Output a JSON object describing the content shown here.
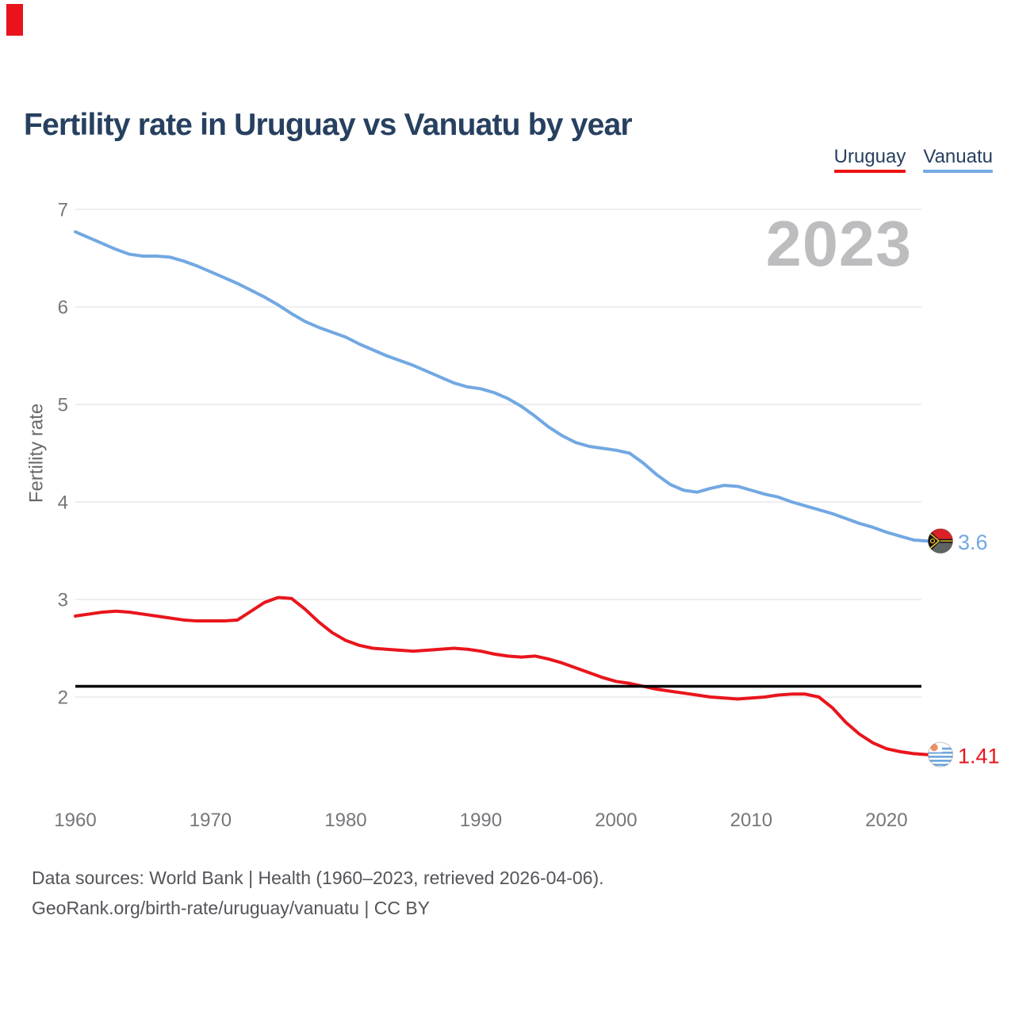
{
  "page": {
    "title": "Fertility rate in Uruguay vs Vanuatu by year",
    "watermark": "2023",
    "corner_mark_color": "#e8131c"
  },
  "legend": [
    {
      "label": "Uruguay",
      "color": "#ee1212"
    },
    {
      "label": "Vanuatu",
      "color": "#74abe2"
    }
  ],
  "footer": {
    "line1": "Data sources: World Bank | Health (1960–2023, retrieved 2026-04-06).",
    "line2": "GeoRank.org/birth-rate/uruguay/vanuatu | CC BY"
  },
  "chart_data": {
    "type": "line",
    "title": "Fertility rate in Uruguay vs Vanuatu by year",
    "xlabel": "",
    "ylabel": "Fertility rate",
    "x_ticks": [
      1960,
      1970,
      1980,
      1990,
      2000,
      2010,
      2020
    ],
    "y_ticks": [
      2,
      3,
      4,
      5,
      6,
      7
    ],
    "xlim": [
      1960,
      2023
    ],
    "ylim": [
      1.3,
      7.05
    ],
    "grid": "horizontal",
    "legend_position": "top-right",
    "reference_line": {
      "value": 2.11,
      "color": "#000000"
    },
    "x": [
      1960,
      1961,
      1962,
      1963,
      1964,
      1965,
      1966,
      1967,
      1968,
      1969,
      1970,
      1971,
      1972,
      1973,
      1974,
      1975,
      1976,
      1977,
      1978,
      1979,
      1980,
      1981,
      1982,
      1983,
      1984,
      1985,
      1986,
      1987,
      1988,
      1989,
      1990,
      1991,
      1992,
      1993,
      1994,
      1995,
      1996,
      1997,
      1998,
      1999,
      2000,
      2001,
      2002,
      2003,
      2004,
      2005,
      2006,
      2007,
      2008,
      2009,
      2010,
      2011,
      2012,
      2013,
      2014,
      2015,
      2016,
      2017,
      2018,
      2019,
      2020,
      2021,
      2022,
      2023
    ],
    "series": [
      {
        "name": "Uruguay",
        "color": "#e9151c",
        "end_label": "1.41",
        "values": [
          2.83,
          2.85,
          2.87,
          2.88,
          2.87,
          2.85,
          2.83,
          2.81,
          2.79,
          2.78,
          2.78,
          2.78,
          2.79,
          2.88,
          2.97,
          3.02,
          3.01,
          2.9,
          2.77,
          2.66,
          2.58,
          2.53,
          2.5,
          2.49,
          2.48,
          2.47,
          2.48,
          2.49,
          2.5,
          2.49,
          2.47,
          2.44,
          2.42,
          2.41,
          2.42,
          2.39,
          2.35,
          2.3,
          2.25,
          2.2,
          2.16,
          2.14,
          2.11,
          2.08,
          2.06,
          2.04,
          2.02,
          2.0,
          1.99,
          1.98,
          1.99,
          2.0,
          2.02,
          2.03,
          2.03,
          2.0,
          1.89,
          1.74,
          1.62,
          1.53,
          1.47,
          1.44,
          1.42,
          1.41
        ]
      },
      {
        "name": "Vanuatu",
        "color": "#72a8e2",
        "end_label": "3.6",
        "values": [
          6.77,
          6.71,
          6.65,
          6.59,
          6.54,
          6.52,
          6.52,
          6.51,
          6.47,
          6.42,
          6.36,
          6.3,
          6.24,
          6.17,
          6.1,
          6.02,
          5.93,
          5.85,
          5.79,
          5.74,
          5.69,
          5.62,
          5.56,
          5.5,
          5.45,
          5.4,
          5.34,
          5.28,
          5.22,
          5.18,
          5.16,
          5.12,
          5.06,
          4.98,
          4.88,
          4.77,
          4.68,
          4.61,
          4.57,
          4.55,
          4.53,
          4.5,
          4.4,
          4.28,
          4.18,
          4.12,
          4.1,
          4.14,
          4.17,
          4.16,
          4.12,
          4.08,
          4.05,
          4.0,
          3.96,
          3.92,
          3.88,
          3.83,
          3.78,
          3.74,
          3.69,
          3.65,
          3.61,
          3.6
        ]
      }
    ]
  }
}
